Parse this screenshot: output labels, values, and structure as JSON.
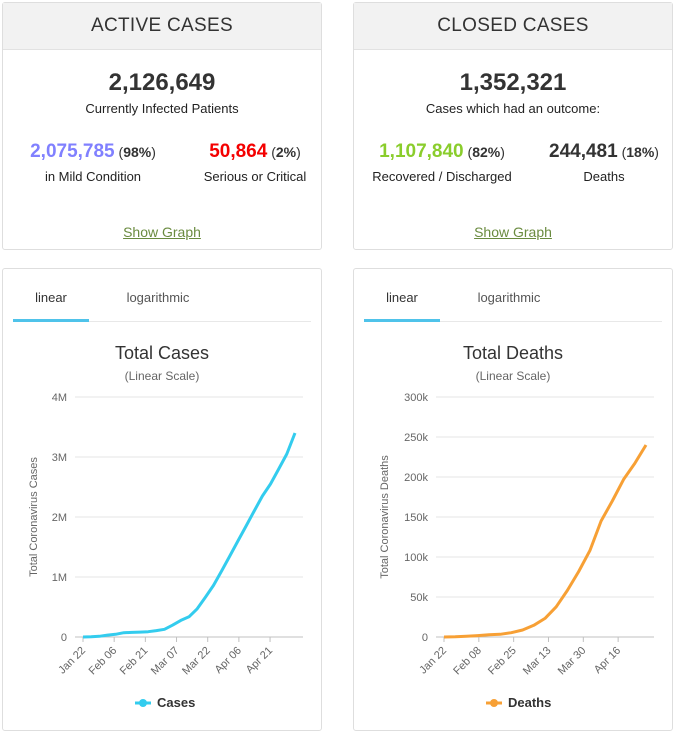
{
  "active": {
    "title": "ACTIVE CASES",
    "total": "2,126,649",
    "subtitle": "Currently Infected Patients",
    "mild_value": "2,075,785",
    "mild_pct_open": " (",
    "mild_pct": "98%",
    "mild_pct_close": ")",
    "mild_label": "in Mild Condition",
    "serious_value": "50,864",
    "serious_pct_open": " (",
    "serious_pct": "2%",
    "serious_pct_close": ")",
    "serious_label": "Serious or Critical",
    "show_graph": "Show Graph",
    "colors": {
      "mild": "#8080ff",
      "serious": "#f40000"
    }
  },
  "closed": {
    "title": "CLOSED CASES",
    "total": "1,352,321",
    "subtitle": "Cases which had an outcome:",
    "recovered_value": "1,107,840",
    "recovered_pct_open": " (",
    "recovered_pct": "82%",
    "recovered_pct_close": ")",
    "recovered_label": "Recovered / Discharged",
    "deaths_value": "244,481",
    "deaths_pct_open": " (",
    "deaths_pct": "18%",
    "deaths_pct_close": ")",
    "deaths_label": "Deaths",
    "show_graph": "Show Graph",
    "colors": {
      "recovered": "#8acd2c",
      "deaths": "#333333"
    }
  },
  "tabs": {
    "linear": "linear",
    "log": "logarithmic"
  },
  "chart_data": [
    {
      "type": "line",
      "title": "Total Cases",
      "subtitle": "(Linear Scale)",
      "xlabel": "",
      "ylabel": "Total Coronavirus Cases",
      "ylim": [
        0,
        4000000
      ],
      "yticks": [
        "0",
        "1M",
        "2M",
        "3M",
        "4M"
      ],
      "ytick_values": [
        0,
        1000000,
        2000000,
        3000000,
        4000000
      ],
      "xticks": [
        "Jan 22",
        "Feb 06",
        "Feb 21",
        "Mar 07",
        "Mar 22",
        "Apr 06",
        "Apr 21"
      ],
      "grid": true,
      "legend_position": "bottom",
      "color": "#33ccee",
      "series": [
        {
          "name": "Cases",
          "x": [
            "Jan 22",
            "Jan 27",
            "Feb 01",
            "Feb 06",
            "Feb 11",
            "Feb 16",
            "Feb 21",
            "Feb 26",
            "Mar 02",
            "Mar 07",
            "Mar 12",
            "Mar 17",
            "Mar 20",
            "Mar 22",
            "Mar 25",
            "Mar 28",
            "Mar 31",
            "Apr 03",
            "Apr 06",
            "Apr 09",
            "Apr 12",
            "Apr 15",
            "Apr 18",
            "Apr 21",
            "Apr 24",
            "Apr 27",
            "Apr 30"
          ],
          "values": [
            580,
            2900,
            12000,
            31000,
            45000,
            72000,
            77000,
            82000,
            89000,
            106000,
            128000,
            198000,
            276000,
            337000,
            470000,
            660000,
            860000,
            1100000,
            1350000,
            1600000,
            1850000,
            2100000,
            2350000,
            2550000,
            2800000,
            3050000,
            3400000
          ]
        }
      ]
    },
    {
      "type": "line",
      "title": "Total Deaths",
      "subtitle": "(Linear Scale)",
      "xlabel": "",
      "ylabel": "Total Coronavirus Deaths",
      "ylim": [
        0,
        300000
      ],
      "yticks": [
        "0",
        "50k",
        "100k",
        "150k",
        "200k",
        "250k",
        "300k"
      ],
      "ytick_values": [
        0,
        50000,
        100000,
        150000,
        200000,
        250000,
        300000
      ],
      "xticks": [
        "Jan 22",
        "Feb 08",
        "Feb 25",
        "Mar 13",
        "Mar 30",
        "Apr 16"
      ],
      "grid": true,
      "legend_position": "bottom",
      "color": "#f7a035",
      "series": [
        {
          "name": "Deaths",
          "x": [
            "Jan 22",
            "Jan 30",
            "Feb 08",
            "Feb 16",
            "Feb 25",
            "Mar 05",
            "Mar 13",
            "Mar 18",
            "Mar 22",
            "Mar 26",
            "Mar 30",
            "Apr 03",
            "Apr 07",
            "Apr 11",
            "Apr 16",
            "Apr 20",
            "Apr 24",
            "Apr 28",
            "Apr 30"
          ],
          "values": [
            17,
            213,
            813,
            1770,
            2760,
            3350,
            5400,
            8800,
            14600,
            23300,
            37800,
            58300,
            81900,
            108000,
            145000,
            170000,
            197000,
            217000,
            240000
          ]
        }
      ]
    }
  ]
}
